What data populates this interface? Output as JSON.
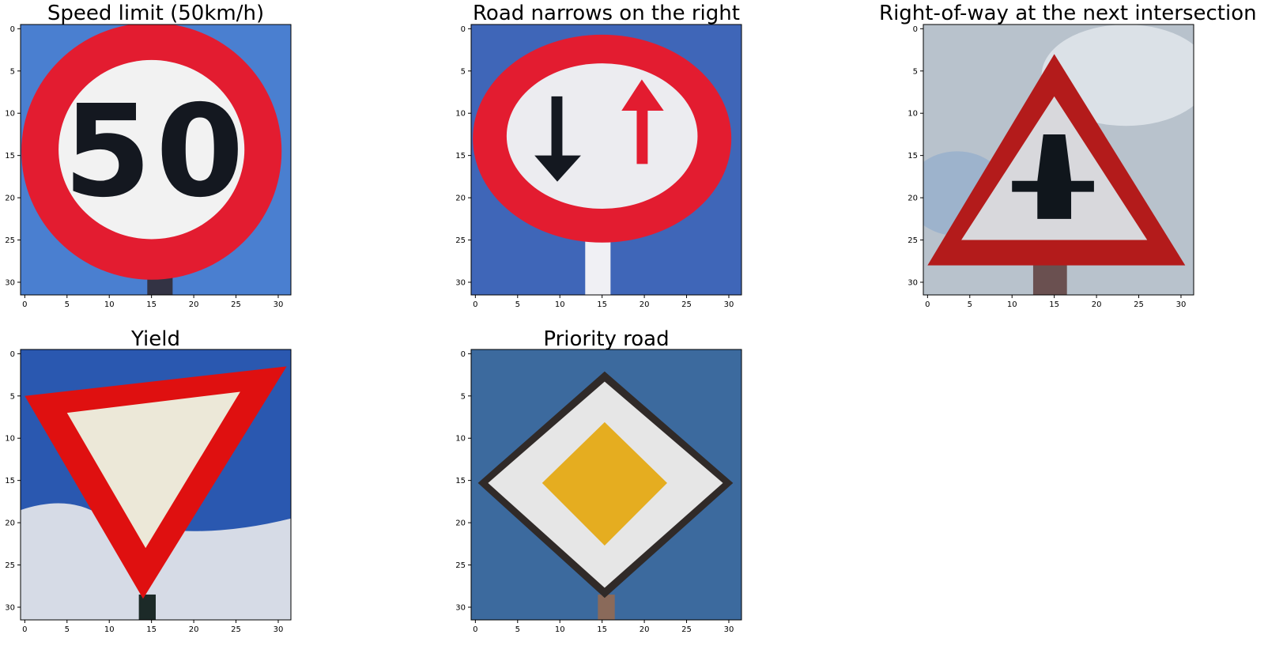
{
  "axes": {
    "xticks": [
      "0",
      "5",
      "10",
      "15",
      "20",
      "25",
      "30"
    ],
    "yticks": [
      "0",
      "5",
      "10",
      "15",
      "20",
      "25",
      "30"
    ]
  },
  "panels": [
    {
      "title": "Speed limit (50km/h)",
      "sign": "speed-limit-50",
      "sign_text": "50",
      "colors": {
        "sky": "#4a7fd0",
        "border": "#e31c30",
        "face": "#f2f2f2",
        "ink": "#141820"
      }
    },
    {
      "title": "Road narrows on the right",
      "sign": "road-narrows-right",
      "colors": {
        "sky": "#3f66b8",
        "border": "#e31c30",
        "face": "#ececf0",
        "ink": "#141820",
        "accent": "#e31c30"
      }
    },
    {
      "title": "Right-of-way at the next intersection",
      "sign": "right-of-way",
      "colors": {
        "sky": "#b8c2cc",
        "border": "#b31b1b",
        "face": "#d8d8dc",
        "ink": "#10161c"
      }
    },
    {
      "title": "Yield",
      "sign": "yield",
      "colors": {
        "sky": "#2a58b0",
        "cloud": "#d6dbe6",
        "border": "#df1010",
        "face": "#ece8d8",
        "ink": "#10161c"
      }
    },
    {
      "title": "Priority road",
      "sign": "priority-road",
      "colors": {
        "sky": "#3c6a9e",
        "border": "#e6e6e6",
        "face": "#e5ad20",
        "ink": "#302a28"
      }
    }
  ]
}
